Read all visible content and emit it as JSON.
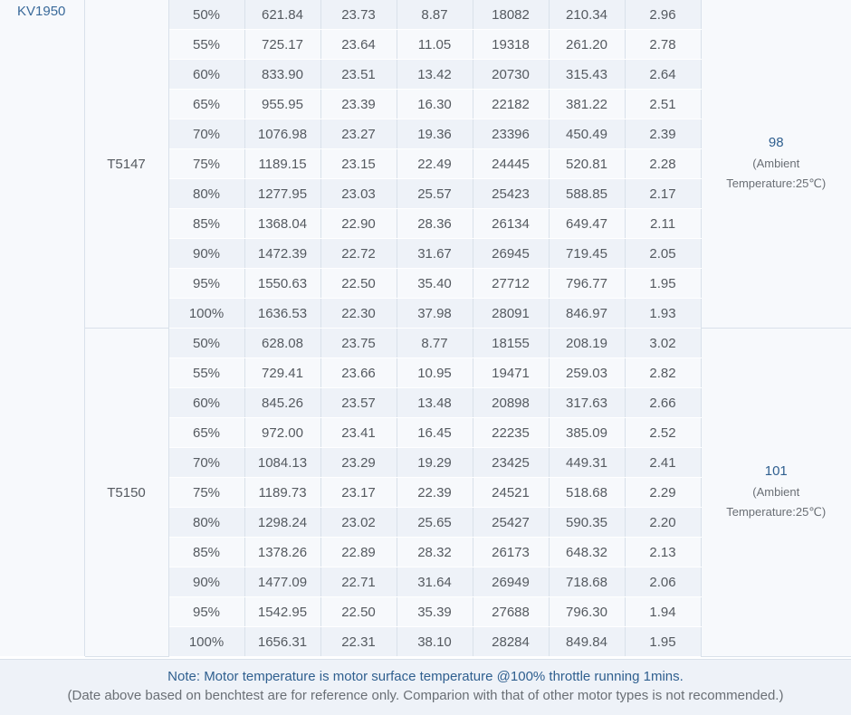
{
  "kv_label": "KV1950",
  "groups": [
    {
      "propeller": "T5147",
      "temp_value": "98",
      "temp_note_line1": "(Ambient",
      "temp_note_line2": "Temperature:25℃)",
      "rows": [
        [
          "50%",
          "621.84",
          "23.73",
          "8.87",
          "18082",
          "210.34",
          "2.96"
        ],
        [
          "55%",
          "725.17",
          "23.64",
          "11.05",
          "19318",
          "261.20",
          "2.78"
        ],
        [
          "60%",
          "833.90",
          "23.51",
          "13.42",
          "20730",
          "315.43",
          "2.64"
        ],
        [
          "65%",
          "955.95",
          "23.39",
          "16.30",
          "22182",
          "381.22",
          "2.51"
        ],
        [
          "70%",
          "1076.98",
          "23.27",
          "19.36",
          "23396",
          "450.49",
          "2.39"
        ],
        [
          "75%",
          "1189.15",
          "23.15",
          "22.49",
          "24445",
          "520.81",
          "2.28"
        ],
        [
          "80%",
          "1277.95",
          "23.03",
          "25.57",
          "25423",
          "588.85",
          "2.17"
        ],
        [
          "85%",
          "1368.04",
          "22.90",
          "28.36",
          "26134",
          "649.47",
          "2.11"
        ],
        [
          "90%",
          "1472.39",
          "22.72",
          "31.67",
          "26945",
          "719.45",
          "2.05"
        ],
        [
          "95%",
          "1550.63",
          "22.50",
          "35.40",
          "27712",
          "796.77",
          "1.95"
        ],
        [
          "100%",
          "1636.53",
          "22.30",
          "37.98",
          "28091",
          "846.97",
          "1.93"
        ]
      ]
    },
    {
      "propeller": "T5150",
      "temp_value": "101",
      "temp_note_line1": "(Ambient",
      "temp_note_line2": "Temperature:25℃)",
      "rows": [
        [
          "50%",
          "628.08",
          "23.75",
          "8.77",
          "18155",
          "208.19",
          "3.02"
        ],
        [
          "55%",
          "729.41",
          "23.66",
          "10.95",
          "19471",
          "259.03",
          "2.82"
        ],
        [
          "60%",
          "845.26",
          "23.57",
          "13.48",
          "20898",
          "317.63",
          "2.66"
        ],
        [
          "65%",
          "972.00",
          "23.41",
          "16.45",
          "22235",
          "385.09",
          "2.52"
        ],
        [
          "70%",
          "1084.13",
          "23.29",
          "19.29",
          "23425",
          "449.31",
          "2.41"
        ],
        [
          "75%",
          "1189.73",
          "23.17",
          "22.39",
          "24521",
          "518.68",
          "2.29"
        ],
        [
          "80%",
          "1298.24",
          "23.02",
          "25.65",
          "25427",
          "590.35",
          "2.20"
        ],
        [
          "85%",
          "1378.26",
          "22.89",
          "28.32",
          "26173",
          "648.32",
          "2.13"
        ],
        [
          "90%",
          "1477.09",
          "22.71",
          "31.64",
          "26949",
          "718.68",
          "2.06"
        ],
        [
          "95%",
          "1542.95",
          "22.50",
          "35.39",
          "27688",
          "796.30",
          "1.94"
        ],
        [
          "100%",
          "1656.31",
          "22.31",
          "38.10",
          "28284",
          "849.84",
          "1.95"
        ]
      ]
    }
  ],
  "note": {
    "main": "Note: Motor temperature is motor surface temperature @100% throttle running 1mins.",
    "sub": "(Date above based on benchtest are for reference only. Comparion with that of other motor types is not recommended.)"
  }
}
